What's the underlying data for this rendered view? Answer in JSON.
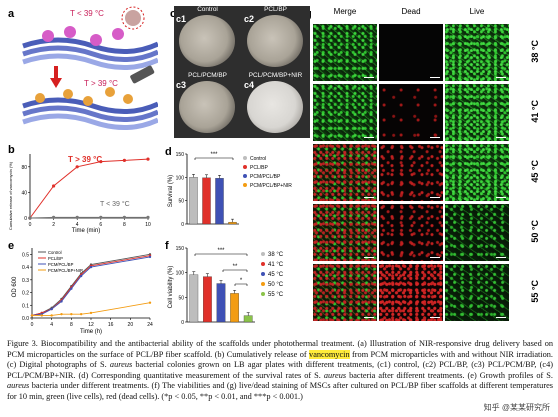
{
  "panel_letters": [
    "a",
    "b",
    "c",
    "d",
    "e",
    "f",
    "g"
  ],
  "panel_a": {
    "above_label": "T < 39 °C",
    "below_label": "T > 39 °C",
    "colors": {
      "fiber_blue": "#4a5db8",
      "fiber_light": "#9aa8e6",
      "particle_pink": "#d65cc7",
      "bacteria_orange": "#e8a13a",
      "arrow_red": "#d62020"
    }
  },
  "panel_b": {
    "ylabel": "Cumulative release of vancomycin (%)",
    "xlabel": "Time (min)",
    "hi_label": "T > 39 °C",
    "lo_label": "T < 39 °C",
    "chart_data": {
      "type": "line",
      "x": [
        0,
        2,
        4,
        6,
        8,
        10
      ],
      "series": [
        {
          "name": "T > 39 °C",
          "color": "#e0302a",
          "values": [
            0,
            50,
            80,
            88,
            90,
            92
          ]
        },
        {
          "name": "T < 39 °C",
          "color": "#777777",
          "values": [
            0,
            1,
            1,
            1,
            1,
            1
          ]
        }
      ],
      "xticks": [
        "0",
        "2",
        "4",
        "6",
        "8",
        "10"
      ],
      "yticks": [
        "0",
        "40",
        "80"
      ],
      "ylim": [
        0,
        100
      ],
      "xlim": [
        0,
        10
      ]
    }
  },
  "panel_c": {
    "dishes": [
      {
        "num": "c1",
        "title": "Control",
        "state": "cloudy"
      },
      {
        "num": "c2",
        "title": "PCL/BP",
        "state": "cloudy"
      },
      {
        "num": "c3",
        "title": "PCL/PCM/BP",
        "state": "cloudy"
      },
      {
        "num": "c4",
        "title": "PCL/PCM/BP+NIR",
        "state": "clear"
      }
    ]
  },
  "panel_d": {
    "ylabel": "Survival (%)",
    "sig": "***",
    "legend": [
      "Control",
      "PCL/BP",
      "PCM/PCL/BP",
      "PCM/PCL/BP+NIR"
    ],
    "chart_data": {
      "type": "bar",
      "categories": [
        "Control",
        "PCL/BP",
        "PCM/PCL/BP",
        "PCM/PCL/BP+NIR"
      ],
      "values": [
        100,
        99,
        98,
        4
      ],
      "colors": [
        "#bdbdbd",
        "#e0302a",
        "#3f51b5",
        "#f39c12"
      ],
      "yticks": [
        "0",
        "50",
        "100",
        "150"
      ],
      "ylim": [
        0,
        150
      ]
    }
  },
  "panel_e": {
    "ylabel": "OD 600",
    "xlabel": "Time (h)",
    "legend": [
      "Control",
      "PCL/BP",
      "PCM/PCL/BP",
      "PCM/PCL/BP+NIR"
    ],
    "chart_data": {
      "type": "line",
      "x": [
        0,
        2,
        4,
        6,
        8,
        10,
        12,
        24
      ],
      "series": [
        {
          "name": "Control",
          "color": "#555555",
          "values": [
            0.02,
            0.04,
            0.08,
            0.15,
            0.25,
            0.35,
            0.42,
            0.5
          ]
        },
        {
          "name": "PCL/BP",
          "color": "#e0302a",
          "values": [
            0.02,
            0.04,
            0.07,
            0.14,
            0.24,
            0.34,
            0.41,
            0.49
          ]
        },
        {
          "name": "PCM/PCL/BP",
          "color": "#3f51b5",
          "values": [
            0.02,
            0.03,
            0.07,
            0.13,
            0.23,
            0.33,
            0.4,
            0.48
          ]
        },
        {
          "name": "PCM/PCL/BP+NIR",
          "color": "#f39c12",
          "values": [
            0.02,
            0.02,
            0.02,
            0.03,
            0.03,
            0.03,
            0.04,
            0.12
          ]
        }
      ],
      "xticks": [
        "0",
        "4",
        "8",
        "12",
        "16",
        "20",
        "24"
      ],
      "yticks": [
        "0.0",
        "0.1",
        "0.2",
        "0.3",
        "0.4",
        "0.5"
      ],
      "ylim": [
        0,
        0.55
      ],
      "xlim": [
        0,
        24
      ]
    }
  },
  "panel_f": {
    "ylabel": "Cell viability (%)",
    "sig": [
      "***",
      "**",
      "*"
    ],
    "legend": [
      "38 °C",
      "41 °C",
      "45 °C",
      "50 °C",
      "55 °C"
    ],
    "chart_data": {
      "type": "bar",
      "categories": [
        "38 °C",
        "41 °C",
        "45 °C",
        "50 °C",
        "55 °C"
      ],
      "values": [
        96,
        92,
        78,
        58,
        13
      ],
      "colors": [
        "#bdbdbd",
        "#e0302a",
        "#3f51b5",
        "#f39c12",
        "#8bc34a"
      ],
      "yticks": [
        "0",
        "50",
        "100",
        "150"
      ],
      "ylim": [
        0,
        150
      ]
    }
  },
  "panel_g": {
    "columns": [
      "Merge",
      "Dead",
      "Live"
    ],
    "rows": [
      "38 °C",
      "41 °C",
      "45 °C",
      "50 °C",
      "55 °C"
    ]
  },
  "caption": {
    "p1": "Figure 3. Biocompatibility and the antibacterial ability of the scaffolds under photothermal treatment. (a) Illustration of NIR-responsive drug delivery based on PCM microparticles on the surface of PCL/BP fiber scaffold. (b) Cumulatively release of ",
    "highlight": "vancomycin",
    "p2": " from PCM microparticles with and without NIR irradiation. (c) Digital photographs of S. ",
    "i1": "aureus",
    "p3": " bacterial colonies grown on LB agar plates with different treatments, (c1) control, (c2) PCL/BP, (c3) PCL/PCM/BP, (c4) PCL/PCM/BP+NIR. (d) Corresponding quantitative measurement of the survival rates of S. ",
    "i2": "aureus",
    "p4": " bacteria after different treatments. (e) Growth profiles of S. ",
    "i3": "aureus",
    "p5": " bacteria under different treatments. (f) The viabilities and (g) live/dead staining of MSCs after cultured on PCL/BP fiber scaffolds at different temperatures for 10 min, green (live cells), red (dead cells). (*p < 0.05, **p < 0.01, and ***p < 0.001.)"
  },
  "watermark": "知乎 @某某研究所"
}
